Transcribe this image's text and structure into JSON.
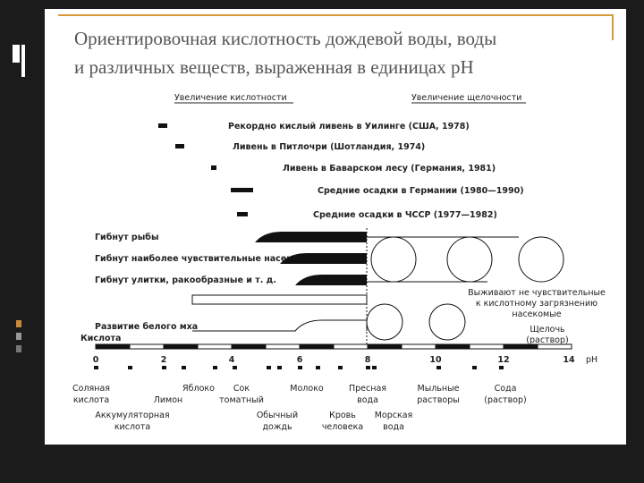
{
  "header": {
    "title": [
      "Ориентировочная кислотность дождевой воды, воды",
      "и различных веществ, выраженная в единицах pH"
    ]
  },
  "diagram": {
    "direction_labels": [
      "Увеличение кислотности",
      "Увеличение щелочности"
    ],
    "events": [
      "Рекордно кислый ливень в Уилинге (США, 1978)",
      "Ливень в Питлочри (Шотландия, 1974)",
      "Ливень в Баварском лесу (Германия, 1981)",
      "Средние осадки в Германии (1980—1990)",
      "Средние осадки в ЧССР (1977—1982)"
    ],
    "effects": [
      "Гибнут рыбы",
      "Гибнут наиболее чувствительные насекомые",
      "Гибнут улитки, ракообразные и т. д.",
      "Развитие белого мха"
    ],
    "survivors": [
      "Выживают не чувствительные",
      "к кислотному загрязнению",
      "насекомые"
    ],
    "acid_label": "Кислота",
    "alkali_label": [
      "Щелочь",
      "(раствор)"
    ],
    "scale_ticks": [
      "0",
      "2",
      "4",
      "6",
      "8",
      "10",
      "12",
      "14"
    ],
    "scale_unit": "pH",
    "substances": [
      [
        "Соляная",
        "кислота"
      ],
      [
        "Лимон"
      ],
      [
        "Яблоко"
      ],
      [
        "Сок",
        "томатный"
      ],
      [
        "Молоко"
      ],
      [
        "Пресная",
        "вода"
      ],
      [
        "Мыльные",
        "растворы"
      ],
      [
        "Сода",
        "(раствор)"
      ],
      [
        "Аккумуляторная",
        "кислота"
      ],
      [
        "Обычный",
        "дождь"
      ],
      [
        "Кровь",
        "человека"
      ],
      [
        "Морская",
        "вода"
      ]
    ]
  }
}
